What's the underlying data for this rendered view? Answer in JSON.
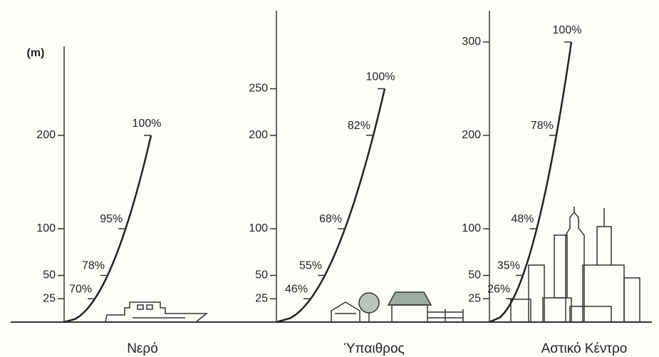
{
  "unit_label": "(m)",
  "panels": [
    {
      "title": "Νερό",
      "yticks": [
        25,
        50,
        100,
        200
      ],
      "points": [
        {
          "height": 25,
          "label": "70%"
        },
        {
          "height": 50,
          "label": "78%"
        },
        {
          "height": 100,
          "label": "95%"
        },
        {
          "height": 200,
          "label": "100%"
        }
      ]
    },
    {
      "title": "Ύπαιθρος",
      "yticks": [
        25,
        50,
        100,
        200,
        250
      ],
      "points": [
        {
          "height": 25,
          "label": "46%"
        },
        {
          "height": 50,
          "label": "55%"
        },
        {
          "height": 100,
          "label": "68%"
        },
        {
          "height": 200,
          "label": "82%"
        },
        {
          "height": 250,
          "label": "100%"
        }
      ]
    },
    {
      "title": "Αστικό Κέντρο",
      "yticks": [
        25,
        50,
        100,
        200,
        300
      ],
      "points": [
        {
          "height": 25,
          "label": "26%"
        },
        {
          "height": 50,
          "label": "35%"
        },
        {
          "height": 100,
          "label": "48%"
        },
        {
          "height": 200,
          "label": "78%"
        },
        {
          "height": 300,
          "label": "100%"
        }
      ]
    }
  ]
}
